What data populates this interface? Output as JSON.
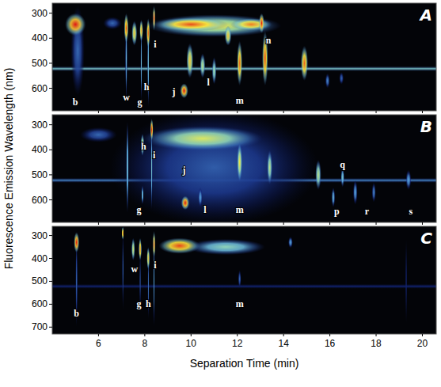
{
  "chart_data": [
    {
      "type": "spectral_map",
      "title": "A",
      "xlim": [
        4,
        20.6
      ],
      "xticks": [
        6,
        8,
        10,
        12,
        14,
        16,
        18,
        20
      ],
      "ylim": [
        690,
        260
      ],
      "yticks": [
        300,
        400,
        500,
        600
      ],
      "tick_labels": "y",
      "bands": [
        {
          "wavelength": 522,
          "intensity": 0.5
        }
      ],
      "peaks": [
        {
          "time": 5.1,
          "wavelength": 450,
          "time_width": 0.3,
          "wavelength_width": 180,
          "intensity": 0.3
        },
        {
          "time": 5.0,
          "wavelength": 345,
          "time_width": 0.45,
          "wavelength_width": 45,
          "intensity": 1.0
        },
        {
          "time": 6.6,
          "wavelength": 340,
          "time_width": 0.4,
          "wavelength_width": 25,
          "intensity": 0.3
        },
        {
          "time": 11,
          "wavelength": 350,
          "time_width": 2.9,
          "wavelength_width": 45,
          "intensity": 0.75
        },
        {
          "time": 10,
          "wavelength": 345,
          "time_width": 1.6,
          "wavelength_width": 28,
          "intensity": 0.95
        },
        {
          "time": 12.6,
          "wavelength": 345,
          "time_width": 0.9,
          "wavelength_width": 25,
          "intensity": 0.9
        },
        {
          "time": 7.2,
          "wavelength": 480,
          "time_width": 0.05,
          "wavelength_width": 170,
          "intensity": 0.45
        },
        {
          "time": 7.2,
          "wavelength": 360,
          "time_width": 0.1,
          "wavelength_width": 60,
          "intensity": 0.95
        },
        {
          "time": 7.55,
          "wavelength": 380,
          "time_width": 0.12,
          "wavelength_width": 50,
          "intensity": 0.8
        },
        {
          "time": 7.85,
          "wavelength": 500,
          "time_width": 0.04,
          "wavelength_width": 150,
          "intensity": 0.45
        },
        {
          "time": 7.85,
          "wavelength": 370,
          "time_width": 0.08,
          "wavelength_width": 45,
          "intensity": 0.85
        },
        {
          "time": 8.15,
          "wavelength": 500,
          "time_width": 0.04,
          "wavelength_width": 180,
          "intensity": 0.5
        },
        {
          "time": 8.15,
          "wavelength": 380,
          "time_width": 0.08,
          "wavelength_width": 60,
          "intensity": 0.95
        },
        {
          "time": 8.4,
          "wavelength": 320,
          "time_width": 0.06,
          "wavelength_width": 50,
          "intensity": 1.0
        },
        {
          "time": 9.7,
          "wavelength": 610,
          "time_width": 0.18,
          "wavelength_width": 30,
          "intensity": 1.0
        },
        {
          "time": 9.95,
          "wavelength": 490,
          "time_width": 0.15,
          "wavelength_width": 70,
          "intensity": 0.8
        },
        {
          "time": 10.5,
          "wavelength": 510,
          "time_width": 0.12,
          "wavelength_width": 50,
          "intensity": 0.65
        },
        {
          "time": 11.0,
          "wavelength": 530,
          "time_width": 0.1,
          "wavelength_width": 55,
          "intensity": 0.6
        },
        {
          "time": 11.6,
          "wavelength": 390,
          "time_width": 0.15,
          "wavelength_width": 40,
          "intensity": 0.8
        },
        {
          "time": 12.1,
          "wavelength": 500,
          "time_width": 0.12,
          "wavelength_width": 90,
          "intensity": 0.92
        },
        {
          "time": 13.05,
          "wavelength": 340,
          "time_width": 0.12,
          "wavelength_width": 40,
          "intensity": 1.0
        },
        {
          "time": 13.2,
          "wavelength": 480,
          "time_width": 0.13,
          "wavelength_width": 110,
          "intensity": 0.95
        },
        {
          "time": 14.9,
          "wavelength": 500,
          "time_width": 0.16,
          "wavelength_width": 70,
          "intensity": 0.92
        },
        {
          "time": 15.9,
          "wavelength": 570,
          "time_width": 0.1,
          "wavelength_width": 30,
          "intensity": 0.35
        },
        {
          "time": 16.5,
          "wavelength": 560,
          "time_width": 0.1,
          "wavelength_width": 25,
          "intensity": 0.3
        }
      ],
      "annotations": [
        {
          "text": "b",
          "time": 5.0,
          "wavelength": 655
        },
        {
          "text": "w",
          "time": 7.2,
          "wavelength": 635
        },
        {
          "text": "g",
          "time": 7.78,
          "wavelength": 655
        },
        {
          "text": "h",
          "time": 8.08,
          "wavelength": 595
        },
        {
          "text": "i",
          "time": 8.45,
          "wavelength": 425
        },
        {
          "text": "j",
          "time": 9.25,
          "wavelength": 615
        },
        {
          "text": "l",
          "time": 10.75,
          "wavelength": 575
        },
        {
          "text": "m",
          "time": 12.1,
          "wavelength": 650
        },
        {
          "text": "n",
          "time": 13.35,
          "wavelength": 410
        }
      ]
    },
    {
      "type": "spectral_map",
      "title": "B",
      "y_label": "Fluorescence Emission Wavelength (nm)",
      "xlim": [
        4,
        20.6
      ],
      "xticks": [
        6,
        8,
        10,
        12,
        14,
        16,
        18,
        20
      ],
      "ylim": [
        690,
        260
      ],
      "yticks": [
        300,
        400,
        500,
        600
      ],
      "tick_labels": "y",
      "bands": [
        {
          "wavelength": 522,
          "intensity": 0.35
        }
      ],
      "peaks": [
        {
          "time": 11,
          "wavelength": 470,
          "time_width": 4.5,
          "wavelength_width": 230,
          "intensity": 0.28
        },
        {
          "time": 6.0,
          "wavelength": 340,
          "time_width": 0.8,
          "wavelength_width": 30,
          "intensity": 0.3
        },
        {
          "time": 10.5,
          "wavelength": 355,
          "time_width": 2.6,
          "wavelength_width": 50,
          "intensity": 0.7
        },
        {
          "time": 7.25,
          "wavelength": 470,
          "time_width": 0.06,
          "wavelength_width": 190,
          "intensity": 0.5
        },
        {
          "time": 7.9,
          "wavelength": 580,
          "time_width": 0.05,
          "wavelength_width": 40,
          "intensity": 0.5
        },
        {
          "time": 7.9,
          "wavelength": 380,
          "time_width": 0.08,
          "wavelength_width": 45,
          "intensity": 0.75
        },
        {
          "time": 8.3,
          "wavelength": 470,
          "time_width": 0.04,
          "wavelength_width": 170,
          "intensity": 0.5
        },
        {
          "time": 8.3,
          "wavelength": 320,
          "time_width": 0.07,
          "wavelength_width": 45,
          "intensity": 1.0
        },
        {
          "time": 9.75,
          "wavelength": 612,
          "time_width": 0.18,
          "wavelength_width": 28,
          "intensity": 1.0
        },
        {
          "time": 10.4,
          "wavelength": 590,
          "time_width": 0.1,
          "wavelength_width": 40,
          "intensity": 0.4
        },
        {
          "time": 12.1,
          "wavelength": 450,
          "time_width": 0.12,
          "wavelength_width": 80,
          "intensity": 0.75
        },
        {
          "time": 13.4,
          "wavelength": 470,
          "time_width": 0.12,
          "wavelength_width": 70,
          "intensity": 0.65
        },
        {
          "time": 15.5,
          "wavelength": 500,
          "time_width": 0.13,
          "wavelength_width": 60,
          "intensity": 0.65
        },
        {
          "time": 16.15,
          "wavelength": 590,
          "time_width": 0.08,
          "wavelength_width": 40,
          "intensity": 0.45
        },
        {
          "time": 16.55,
          "wavelength": 510,
          "time_width": 0.08,
          "wavelength_width": 40,
          "intensity": 0.5
        },
        {
          "time": 17.1,
          "wavelength": 570,
          "time_width": 0.1,
          "wavelength_width": 50,
          "intensity": 0.4
        },
        {
          "time": 17.9,
          "wavelength": 570,
          "time_width": 0.09,
          "wavelength_width": 40,
          "intensity": 0.35
        },
        {
          "time": 19.4,
          "wavelength": 520,
          "time_width": 0.12,
          "wavelength_width": 40,
          "intensity": 0.4
        }
      ],
      "annotations": [
        {
          "text": "h",
          "time": 7.95,
          "wavelength": 385
        },
        {
          "text": "i",
          "time": 8.4,
          "wavelength": 420
        },
        {
          "text": "g",
          "time": 7.75,
          "wavelength": 640
        },
        {
          "text": "j",
          "time": 9.7,
          "wavelength": 480
        },
        {
          "text": "l",
          "time": 10.6,
          "wavelength": 640
        },
        {
          "text": "m",
          "time": 12.1,
          "wavelength": 640
        },
        {
          "text": "p",
          "time": 16.3,
          "wavelength": 645
        },
        {
          "text": "q",
          "time": 16.55,
          "wavelength": 460
        },
        {
          "text": "r",
          "time": 17.6,
          "wavelength": 645
        },
        {
          "text": "s",
          "time": 19.5,
          "wavelength": 645
        }
      ]
    },
    {
      "type": "spectral_map",
      "title": "C",
      "x_label": "Separation Time (min)",
      "xlim": [
        4,
        20.6
      ],
      "xticks": [
        6,
        8,
        10,
        12,
        14,
        16,
        18,
        20
      ],
      "ylim": [
        730,
        260
      ],
      "yticks": [
        300,
        400,
        500,
        600,
        700
      ],
      "tick_labels": true,
      "bands": [
        {
          "wavelength": 522,
          "intensity": 0.18
        }
      ],
      "peaks": [
        {
          "time": 5.05,
          "wavelength": 500,
          "time_width": 0.05,
          "wavelength_width": 200,
          "intensity": 0.3
        },
        {
          "time": 5.05,
          "wavelength": 330,
          "time_width": 0.12,
          "wavelength_width": 45,
          "intensity": 1.0
        },
        {
          "time": 7.05,
          "wavelength": 450,
          "time_width": 0.03,
          "wavelength_width": 200,
          "intensity": 0.35
        },
        {
          "time": 7.05,
          "wavelength": 290,
          "time_width": 0.05,
          "wavelength_width": 30,
          "intensity": 0.95
        },
        {
          "time": 7.5,
          "wavelength": 360,
          "time_width": 0.08,
          "wavelength_width": 50,
          "intensity": 0.7
        },
        {
          "time": 7.8,
          "wavelength": 500,
          "time_width": 0.03,
          "wavelength_width": 150,
          "intensity": 0.35
        },
        {
          "time": 7.8,
          "wavelength": 360,
          "time_width": 0.07,
          "wavelength_width": 50,
          "intensity": 0.9
        },
        {
          "time": 8.15,
          "wavelength": 520,
          "time_width": 0.03,
          "wavelength_width": 150,
          "intensity": 0.35
        },
        {
          "time": 8.15,
          "wavelength": 400,
          "time_width": 0.07,
          "wavelength_width": 50,
          "intensity": 0.8
        },
        {
          "time": 8.4,
          "wavelength": 500,
          "time_width": 0.03,
          "wavelength_width": 200,
          "intensity": 0.4
        },
        {
          "time": 8.4,
          "wavelength": 340,
          "time_width": 0.06,
          "wavelength_width": 60,
          "intensity": 0.95
        },
        {
          "time": 11.5,
          "wavelength": 350,
          "time_width": 1.7,
          "wavelength_width": 35,
          "intensity": 0.55
        },
        {
          "time": 9.5,
          "wavelength": 345,
          "time_width": 0.9,
          "wavelength_width": 35,
          "intensity": 0.95
        },
        {
          "time": 12.1,
          "wavelength": 490,
          "time_width": 0.07,
          "wavelength_width": 40,
          "intensity": 0.3
        },
        {
          "time": 14.3,
          "wavelength": 330,
          "time_width": 0.1,
          "wavelength_width": 25,
          "intensity": 0.4
        },
        {
          "time": 19.3,
          "wavelength": 500,
          "time_width": 0.03,
          "wavelength_width": 220,
          "intensity": 0.25
        }
      ],
      "annotations": [
        {
          "text": "b",
          "time": 5.05,
          "wavelength": 640
        },
        {
          "text": "w",
          "time": 7.55,
          "wavelength": 445
        },
        {
          "text": "i",
          "time": 8.45,
          "wavelength": 430
        },
        {
          "text": "g",
          "time": 7.75,
          "wavelength": 600
        },
        {
          "text": "h",
          "time": 8.15,
          "wavelength": 600
        },
        {
          "text": "m",
          "time": 12.1,
          "wavelength": 600
        }
      ]
    }
  ]
}
